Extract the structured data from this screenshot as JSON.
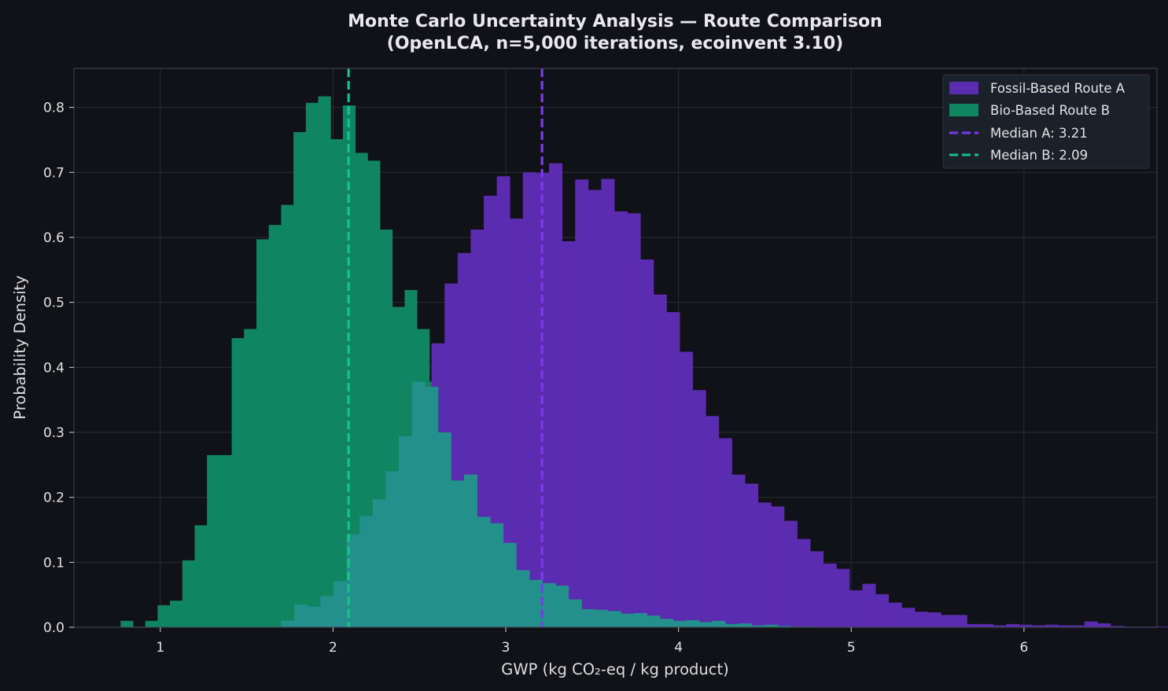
{
  "chart_data": {
    "type": "histogram",
    "title_line1": "Monte Carlo Uncertainty Analysis — Route Comparison",
    "title_line2": "(OpenLCA, n=5,000 iterations, ecoinvent 3.10)",
    "xlabel": "GWP (kg CO₂-eq / kg product)",
    "ylabel": "Probability Density",
    "xlim": [
      0.5,
      6.77
    ],
    "ylim": [
      0,
      0.86
    ],
    "xticks": [
      1,
      2,
      3,
      4,
      5,
      6
    ],
    "yticks": [
      0.0,
      0.1,
      0.2,
      0.3,
      0.4,
      0.5,
      0.6,
      0.7,
      0.8
    ],
    "xtick_labels": [
      "1",
      "2",
      "3",
      "4",
      "5",
      "6"
    ],
    "ytick_labels": [
      "0.0",
      "0.1",
      "0.2",
      "0.3",
      "0.4",
      "0.5",
      "0.6",
      "0.7",
      "0.8"
    ],
    "grid": true,
    "legend_position": "top-right",
    "colors": {
      "background": "#111217",
      "route_a": "#5b2bb0",
      "route_b": "#0f8660",
      "overlap": "#24908b",
      "median_a": "#7c3aed",
      "median_b": "#19c08c",
      "grid": "#2a2d36",
      "axes": "#3a3d46"
    },
    "series": [
      {
        "name": "Fossil-Based Route A",
        "bin_start": 1.7,
        "bin_width": 0.0756,
        "density": [
          0.01,
          0.035,
          0.032,
          0.048,
          0.071,
          0.143,
          0.171,
          0.197,
          0.24,
          0.294,
          0.378,
          0.37,
          0.3,
          0.226,
          0.235,
          0.17,
          0.16,
          0.13,
          0.088,
          0.073,
          0.068,
          0.064,
          0.043,
          0.028,
          0.027,
          0.025,
          0.021,
          0.022,
          0.018,
          0.013,
          0.01,
          0.011,
          0.008,
          0.01,
          0.005,
          0.006,
          0.003,
          0.004,
          0.002,
          0.001,
          0.001
        ],
        "main_bin_start": 2.57,
        "main_bin_width": 0.0756,
        "main_density": [
          0.437,
          0.529,
          0.576,
          0.612,
          0.664,
          0.694,
          0.629,
          0.7,
          0.699,
          0.714,
          0.594,
          0.689,
          0.673,
          0.69,
          0.64,
          0.637,
          0.566,
          0.512,
          0.485,
          0.424,
          0.365,
          0.325,
          0.291,
          0.235,
          0.221,
          0.192,
          0.186,
          0.164,
          0.136,
          0.117,
          0.098,
          0.09,
          0.057,
          0.067,
          0.051,
          0.038,
          0.03,
          0.024,
          0.023,
          0.019,
          0.019,
          0.005,
          0.005,
          0.003,
          0.005,
          0.004,
          0.003,
          0.004,
          0.003,
          0.003,
          0.009,
          0.006,
          0.002,
          0.001,
          0.001,
          0.001,
          0.001,
          0.001,
          0.001,
          0.001,
          0.001,
          0.001,
          0.001,
          0.001,
          0.001,
          0.001,
          0.001,
          0.001,
          0.002,
          0.002
        ]
      },
      {
        "name": "Bio-Based Route B",
        "bin_start": 0.77,
        "bin_width": 0.0715,
        "density": [
          0.01,
          0.001,
          0.01,
          0.034,
          0.041,
          0.103,
          0.157,
          0.265,
          0.265,
          0.445,
          0.459,
          0.597,
          0.619,
          0.65,
          0.762,
          0.807,
          0.817,
          0.751,
          0.803,
          0.73,
          0.718,
          0.612,
          0.493,
          0.519,
          0.459,
          0.378,
          0.37,
          0.3,
          0.226,
          0.235,
          0.17,
          0.16,
          0.13,
          0.088,
          0.073,
          0.068,
          0.064,
          0.043,
          0.028,
          0.027,
          0.025,
          0.021,
          0.022,
          0.018,
          0.013,
          0.01,
          0.011
        ]
      }
    ],
    "medians": [
      {
        "name": "Median A: 3.21",
        "value": 3.21
      },
      {
        "name": "Median B: 2.09",
        "value": 2.09
      }
    ]
  }
}
